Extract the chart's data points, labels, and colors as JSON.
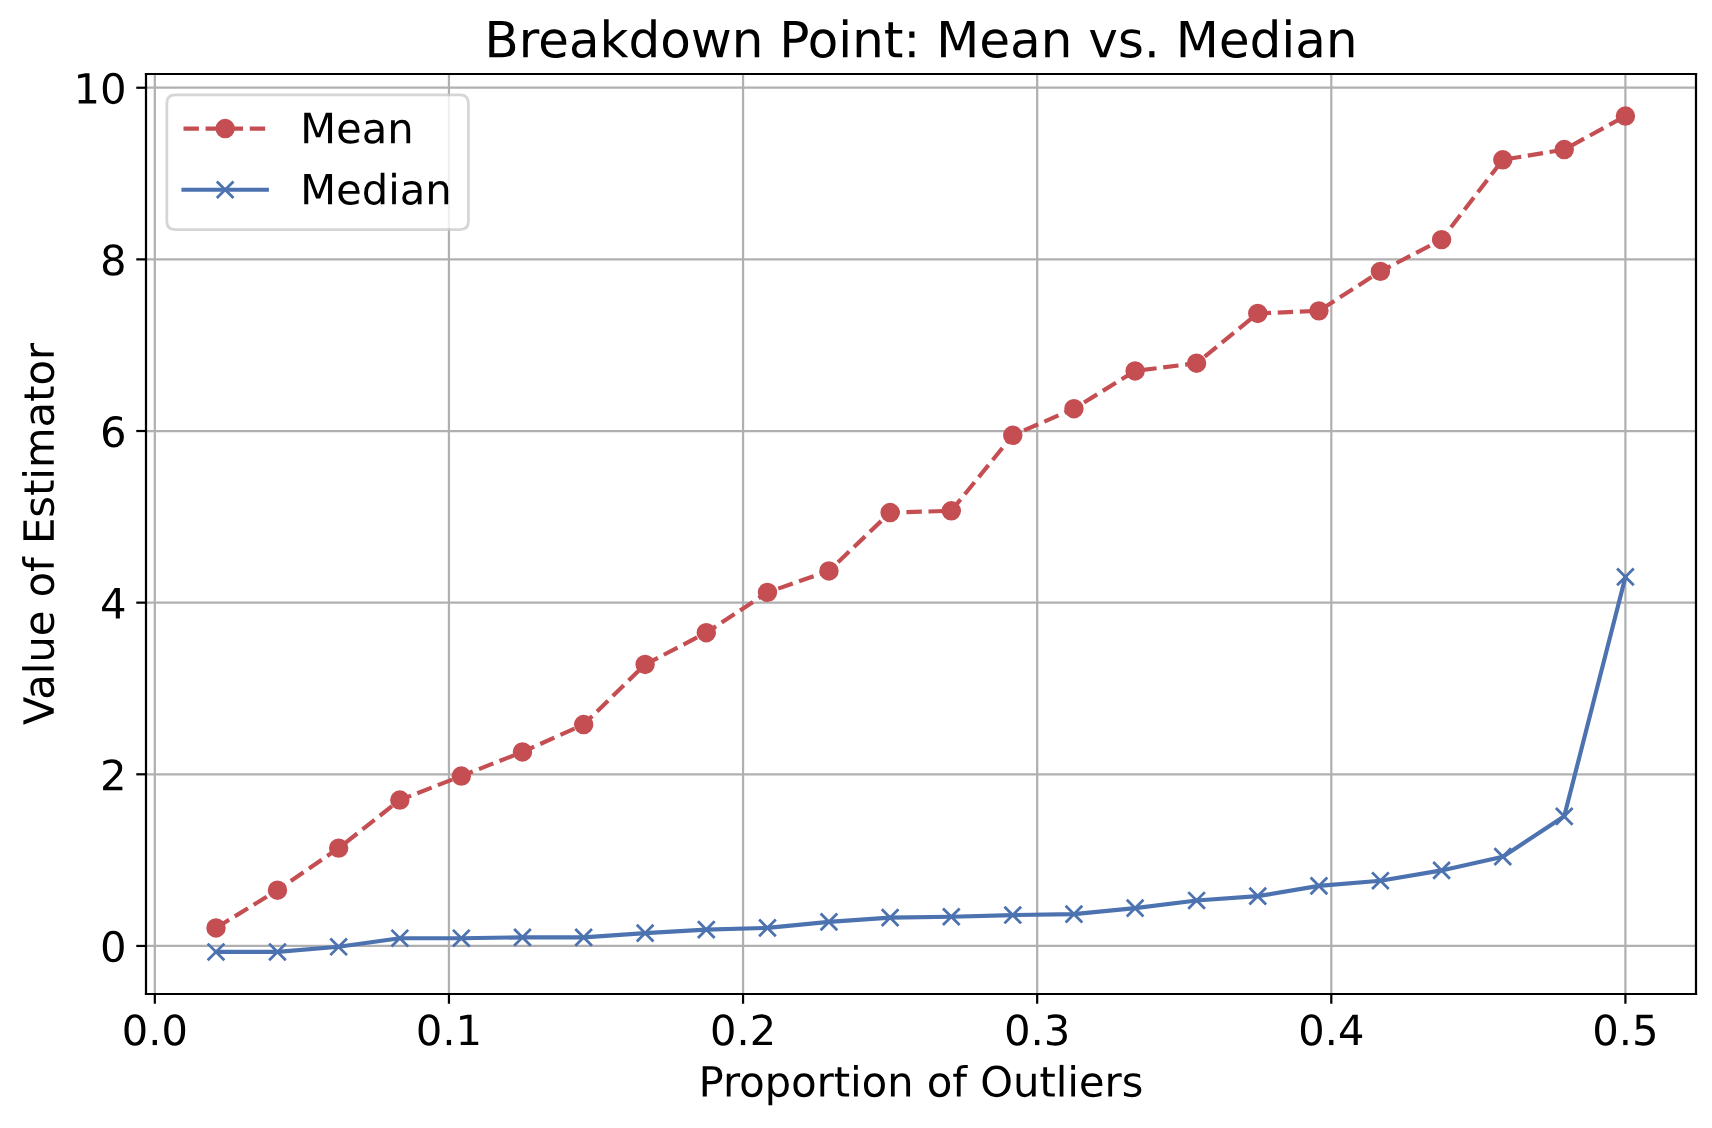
{
  "chart_data": {
    "type": "line",
    "title": "Breakdown Point: Mean vs. Median",
    "xlabel": "Proportion of Outliers",
    "ylabel": "Value of Estimator",
    "x": [
      0.0208,
      0.0417,
      0.0625,
      0.0833,
      0.1042,
      0.125,
      0.1458,
      0.1667,
      0.1875,
      0.2083,
      0.2292,
      0.25,
      0.2708,
      0.2917,
      0.3125,
      0.3333,
      0.3542,
      0.375,
      0.3958,
      0.4167,
      0.4375,
      0.4583,
      0.4792,
      0.5
    ],
    "series": [
      {
        "name": "Mean",
        "color": "#c44e52",
        "marker": "circle",
        "line_style": "dashed",
        "values": [
          0.21,
          0.65,
          1.14,
          1.7,
          1.98,
          2.26,
          2.58,
          3.28,
          3.65,
          4.12,
          4.37,
          5.05,
          5.07,
          5.95,
          6.26,
          6.7,
          6.79,
          7.37,
          7.4,
          7.86,
          8.23,
          9.16,
          9.28,
          9.67
        ]
      },
      {
        "name": "Median",
        "color": "#4c72b0",
        "marker": "cross",
        "line_style": "solid",
        "values": [
          -0.07,
          -0.07,
          -0.01,
          0.09,
          0.09,
          0.1,
          0.1,
          0.15,
          0.19,
          0.21,
          0.28,
          0.33,
          0.34,
          0.36,
          0.37,
          0.44,
          0.53,
          0.58,
          0.7,
          0.76,
          0.88,
          1.04,
          1.51,
          4.3
        ]
      }
    ],
    "xlim": [
      -0.003,
      0.524
    ],
    "xticks": [
      {
        "value": 0.0,
        "label": "0.0"
      },
      0.1,
      0.2,
      0.3,
      0.4,
      0.5
    ],
    "ylim": [
      -0.56,
      10.16
    ],
    "yticks": [
      0,
      2,
      4,
      6,
      8,
      10
    ],
    "grid": true,
    "legend": "top left"
  }
}
